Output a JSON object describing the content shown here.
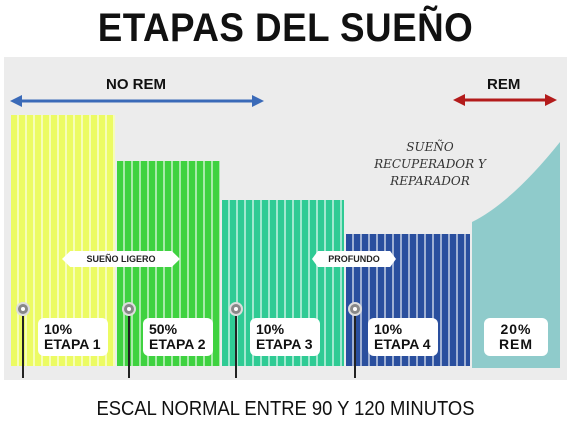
{
  "title": "ETAPAS DEL SUEÑO",
  "nrem_label": "NO REM",
  "rem_label": "REM",
  "light_sleep_label": "SUEÑO LIGERO",
  "deep_label": "PROFUNDO",
  "restorative": {
    "line1": "SUEÑO",
    "line2": "RECUPERADOR Y",
    "line3": "REPARADOR"
  },
  "stages": [
    {
      "percent": "10%",
      "name": "ETAPA 1",
      "color": "#ecfb63"
    },
    {
      "percent": "50%",
      "name": "ETAPA 2",
      "color": "#3fd240"
    },
    {
      "percent": "10%",
      "name": "ETAPA 3",
      "color": "#2fcb94"
    },
    {
      "percent": "10%",
      "name": "ETAPA 4",
      "color": "#2a4f9e"
    },
    {
      "percent": "20%",
      "name": "REM",
      "color": "#8fcbcb"
    }
  ],
  "footer": "ESCAL NORMAL ENTRE 90 Y 120 MINUTOS",
  "colors": {
    "nrem_arrow": "#3a6ab8",
    "rem_arrow": "#b31b1b"
  },
  "icons": [
    "double-arrow-icon",
    "map-pin-icon"
  ]
}
